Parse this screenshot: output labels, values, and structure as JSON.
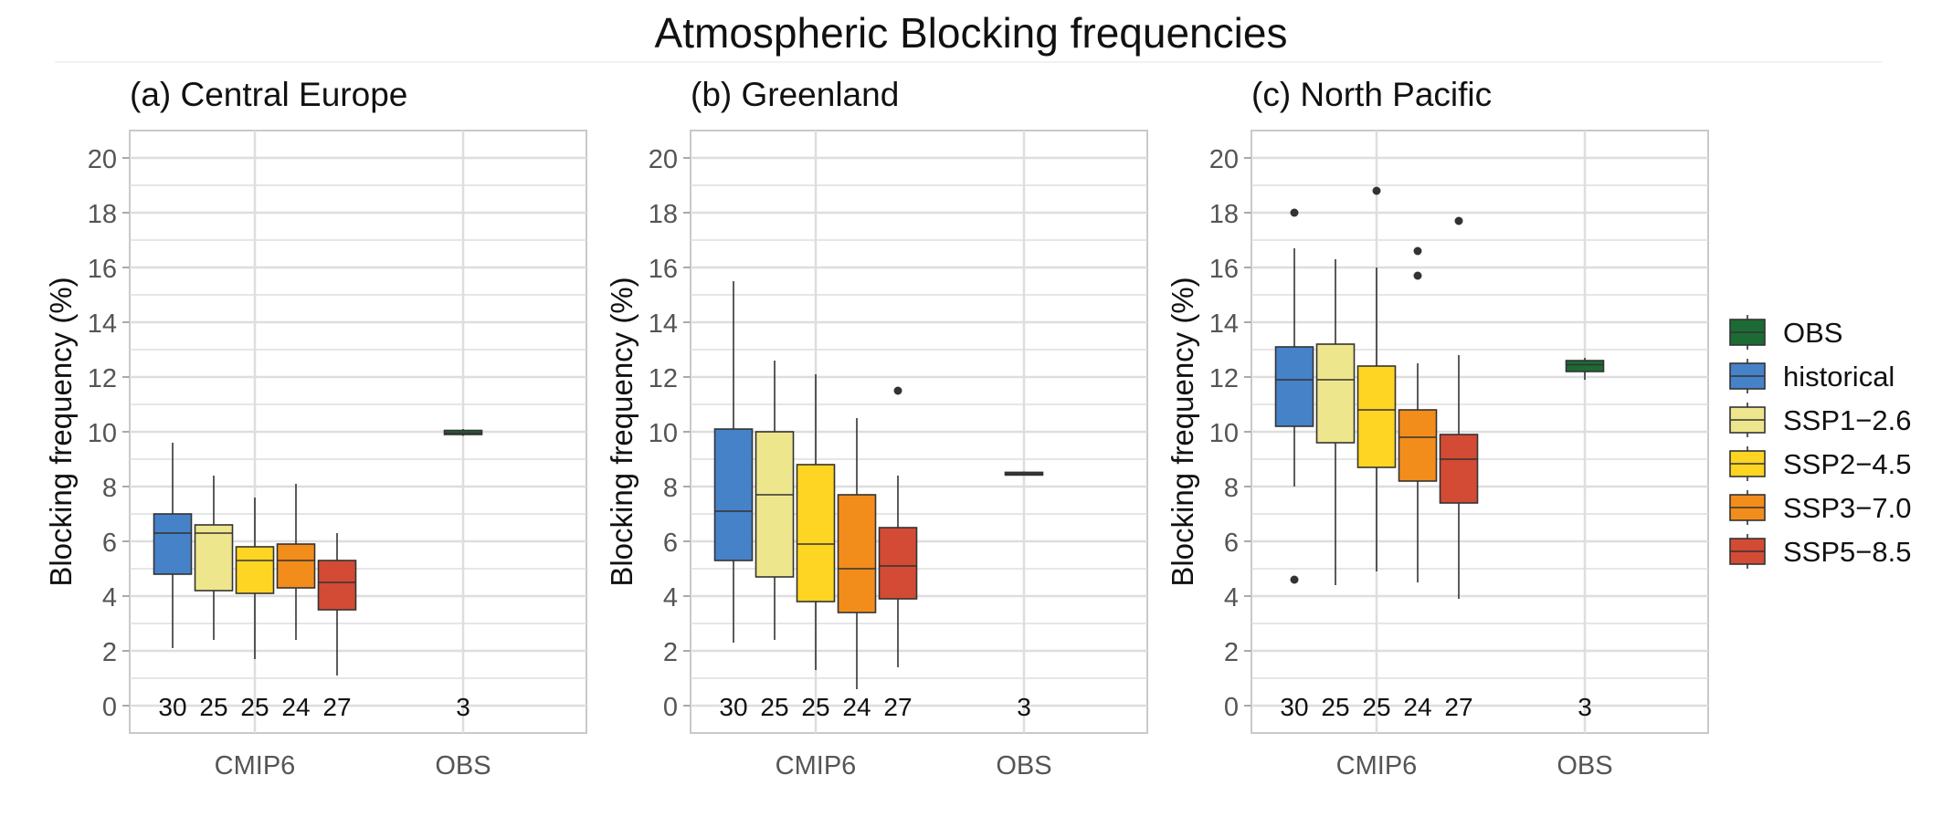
{
  "figure": {
    "title": "Atmospheric Blocking frequencies"
  },
  "colors": {
    "OBS": "#1c6b35",
    "historical": "#4682c8",
    "SSP1-2.6": "#eee68d",
    "SSP2-4.5": "#fdd522",
    "SSP3-7.0": "#f28d1c",
    "SSP5-8.5": "#d34b34",
    "grid": "#dedede",
    "axis_text": "#555555"
  },
  "legend": {
    "position": "right",
    "entries": [
      "OBS",
      "historical",
      "SSP1−2.6",
      "SSP2−4.5",
      "SSP3−7.0",
      "SSP5−8.5"
    ]
  },
  "chart_data": [
    {
      "type": "box",
      "title": "(a) Central Europe",
      "ylabel": "Blocking frequency (%)",
      "xlabel": "",
      "ylim": [
        -1,
        21
      ],
      "yticks": [
        0,
        2,
        4,
        6,
        8,
        10,
        12,
        14,
        16,
        18,
        20
      ],
      "categories": [
        "CMIP6",
        "OBS"
      ],
      "boxes": [
        {
          "group": "CMIP6",
          "series": "historical",
          "n": "30",
          "low": 2.1,
          "q1": 4.8,
          "median": 6.3,
          "q3": 7.0,
          "high": 9.6,
          "outliers": []
        },
        {
          "group": "CMIP6",
          "series": "SSP1-2.6",
          "n": "25",
          "low": 2.4,
          "q1": 4.2,
          "median": 6.3,
          "q3": 6.6,
          "high": 8.4,
          "outliers": []
        },
        {
          "group": "CMIP6",
          "series": "SSP2-4.5",
          "n": "25",
          "low": 1.7,
          "q1": 4.1,
          "median": 5.3,
          "q3": 5.8,
          "high": 7.6,
          "outliers": []
        },
        {
          "group": "CMIP6",
          "series": "SSP3-7.0",
          "n": "24",
          "low": 2.4,
          "q1": 4.3,
          "median": 5.3,
          "q3": 5.9,
          "high": 8.1,
          "outliers": []
        },
        {
          "group": "CMIP6",
          "series": "SSP5-8.5",
          "n": "27",
          "low": 1.1,
          "q1": 3.5,
          "median": 4.5,
          "q3": 5.3,
          "high": 6.3,
          "outliers": []
        },
        {
          "group": "OBS",
          "series": "OBS",
          "n": "3",
          "low": 9.85,
          "q1": 9.9,
          "median": 9.95,
          "q3": 10.05,
          "high": 10.1,
          "outliers": []
        }
      ]
    },
    {
      "type": "box",
      "title": "(b) Greenland",
      "ylabel": "Blocking frequency (%)",
      "xlabel": "",
      "ylim": [
        -1,
        21
      ],
      "yticks": [
        0,
        2,
        4,
        6,
        8,
        10,
        12,
        14,
        16,
        18,
        20
      ],
      "categories": [
        "CMIP6",
        "OBS"
      ],
      "boxes": [
        {
          "group": "CMIP6",
          "series": "historical",
          "n": "30",
          "low": 2.3,
          "q1": 5.3,
          "median": 7.1,
          "q3": 10.1,
          "high": 15.5,
          "outliers": []
        },
        {
          "group": "CMIP6",
          "series": "SSP1-2.6",
          "n": "25",
          "low": 2.4,
          "q1": 4.7,
          "median": 7.7,
          "q3": 10.0,
          "high": 12.6,
          "outliers": []
        },
        {
          "group": "CMIP6",
          "series": "SSP2-4.5",
          "n": "25",
          "low": 1.3,
          "q1": 3.8,
          "median": 5.9,
          "q3": 8.8,
          "high": 12.1,
          "outliers": []
        },
        {
          "group": "CMIP6",
          "series": "SSP3-7.0",
          "n": "24",
          "low": 0.6,
          "q1": 3.4,
          "median": 5.0,
          "q3": 7.7,
          "high": 10.5,
          "outliers": []
        },
        {
          "group": "CMIP6",
          "series": "SSP5-8.5",
          "n": "27",
          "low": 1.4,
          "q1": 3.9,
          "median": 5.1,
          "q3": 6.5,
          "high": 8.4,
          "outliers": [
            11.5
          ]
        },
        {
          "group": "OBS",
          "series": "OBS",
          "n": "3",
          "low": 8.4,
          "q1": 8.42,
          "median": 8.47,
          "q3": 8.52,
          "high": 8.55,
          "outliers": []
        }
      ]
    },
    {
      "type": "box",
      "title": "(c) North Pacific",
      "ylabel": "Blocking frequency (%)",
      "xlabel": "",
      "ylim": [
        -1,
        21
      ],
      "yticks": [
        0,
        2,
        4,
        6,
        8,
        10,
        12,
        14,
        16,
        18,
        20
      ],
      "categories": [
        "CMIP6",
        "OBS"
      ],
      "boxes": [
        {
          "group": "CMIP6",
          "series": "historical",
          "n": "30",
          "low": 8.0,
          "q1": 10.2,
          "median": 11.9,
          "q3": 13.1,
          "high": 16.7,
          "outliers": [
            18.0,
            4.6
          ]
        },
        {
          "group": "CMIP6",
          "series": "SSP1-2.6",
          "n": "25",
          "low": 4.4,
          "q1": 9.6,
          "median": 11.9,
          "q3": 13.2,
          "high": 16.3,
          "outliers": []
        },
        {
          "group": "CMIP6",
          "series": "SSP2-4.5",
          "n": "25",
          "low": 4.9,
          "q1": 8.7,
          "median": 10.8,
          "q3": 12.4,
          "high": 16.0,
          "outliers": [
            18.8
          ]
        },
        {
          "group": "CMIP6",
          "series": "SSP3-7.0",
          "n": "24",
          "low": 4.5,
          "q1": 8.2,
          "median": 9.8,
          "q3": 10.8,
          "high": 12.5,
          "outliers": [
            16.6,
            15.7
          ]
        },
        {
          "group": "CMIP6",
          "series": "SSP5-8.5",
          "n": "27",
          "low": 3.9,
          "q1": 7.4,
          "median": 9.0,
          "q3": 9.9,
          "high": 12.8,
          "outliers": [
            17.7
          ]
        },
        {
          "group": "OBS",
          "series": "OBS",
          "n": "3",
          "low": 11.9,
          "q1": 12.2,
          "median": 12.45,
          "q3": 12.6,
          "high": 12.7,
          "outliers": []
        }
      ]
    }
  ]
}
